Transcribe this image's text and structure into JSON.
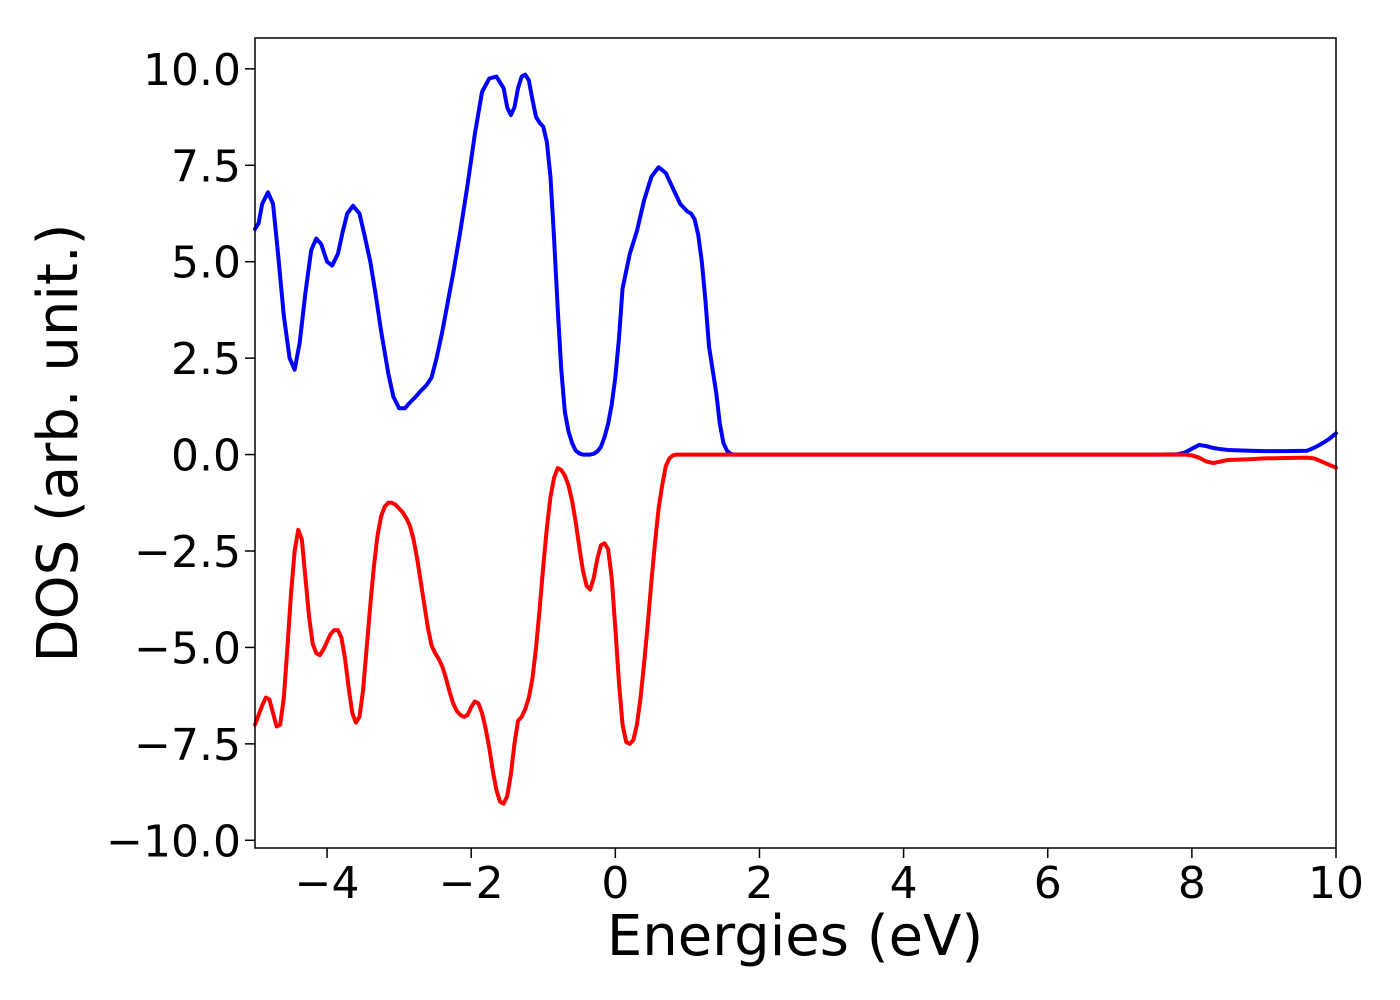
{
  "chart_data": {
    "type": "line",
    "title": "",
    "xlabel": "Energies (eV)",
    "ylabel": "DOS (arb. unit.)",
    "xlim": [
      -5,
      10
    ],
    "ylim": [
      -10.2,
      10.8
    ],
    "xticks": [
      -4,
      -2,
      0,
      2,
      4,
      6,
      8,
      10
    ],
    "xtick_labels": [
      "−4",
      "−2",
      "0",
      "2",
      "4",
      "6",
      "8",
      "10"
    ],
    "yticks": [
      -10,
      -7.5,
      -5,
      -2.5,
      0,
      2.5,
      5,
      7.5,
      10
    ],
    "ytick_labels": [
      "−10.0",
      "−7.5",
      "−5.0",
      "−2.5",
      "0.0",
      "2.5",
      "5.0",
      "7.5",
      "10.0"
    ],
    "grid": false,
    "legend": "none",
    "series": [
      {
        "color": "#0000ff",
        "x": [
          -5.0,
          -4.95,
          -4.9,
          -4.82,
          -4.75,
          -4.68,
          -4.6,
          -4.52,
          -4.45,
          -4.38,
          -4.3,
          -4.22,
          -4.15,
          -4.08,
          -4.0,
          -3.93,
          -3.85,
          -3.78,
          -3.72,
          -3.64,
          -3.55,
          -3.47,
          -3.4,
          -3.33,
          -3.25,
          -3.15,
          -3.08,
          -3.0,
          -2.92,
          -2.85,
          -2.77,
          -2.7,
          -2.62,
          -2.55,
          -2.48,
          -2.4,
          -2.32,
          -2.25,
          -2.15,
          -2.05,
          -1.95,
          -1.85,
          -1.75,
          -1.65,
          -1.55,
          -1.5,
          -1.45,
          -1.4,
          -1.35,
          -1.3,
          -1.25,
          -1.2,
          -1.15,
          -1.1,
          -1.05,
          -1.0,
          -0.95,
          -0.9,
          -0.85,
          -0.8,
          -0.75,
          -0.7,
          -0.65,
          -0.6,
          -0.55,
          -0.5,
          -0.45,
          -0.4,
          -0.35,
          -0.3,
          -0.25,
          -0.2,
          -0.15,
          -0.1,
          -0.05,
          0.0,
          0.05,
          0.1,
          0.2,
          0.3,
          0.4,
          0.5,
          0.6,
          0.7,
          0.8,
          0.9,
          1.0,
          1.05,
          1.1,
          1.15,
          1.2,
          1.25,
          1.3,
          1.4,
          1.45,
          1.5,
          1.55,
          1.6,
          1.65,
          1.7,
          1.75,
          1.8,
          1.85,
          1.9,
          1.95,
          2.0,
          2.05,
          2.1,
          2.15,
          2.2,
          2.25,
          2.3,
          2.35,
          2.4,
          2.45,
          2.5,
          2.55,
          2.6,
          2.7,
          2.8,
          3.0,
          3.5,
          4.0,
          5.0,
          6.0,
          7.0,
          7.5,
          7.8,
          7.9,
          8.0,
          8.1,
          8.2,
          8.3,
          8.4,
          8.5,
          8.8,
          9.0,
          9.3,
          9.6,
          9.7,
          9.8,
          9.9,
          10.0
        ],
        "y": [
          5.85,
          6.0,
          6.5,
          6.8,
          6.5,
          5.2,
          3.6,
          2.5,
          2.2,
          2.9,
          4.2,
          5.3,
          5.6,
          5.45,
          5.0,
          4.9,
          5.2,
          5.8,
          6.25,
          6.45,
          6.25,
          5.6,
          5.0,
          4.2,
          3.2,
          2.1,
          1.5,
          1.2,
          1.2,
          1.35,
          1.5,
          1.65,
          1.8,
          2.0,
          2.5,
          3.2,
          4.0,
          4.7,
          5.8,
          7.0,
          8.3,
          9.4,
          9.75,
          9.8,
          9.5,
          9.0,
          8.8,
          9.0,
          9.5,
          9.8,
          9.85,
          9.7,
          9.2,
          8.75,
          8.6,
          8.5,
          8.1,
          7.2,
          5.6,
          3.8,
          2.2,
          1.1,
          0.6,
          0.3,
          0.1,
          0.03,
          0.0,
          0.0,
          0.0,
          0.02,
          0.08,
          0.2,
          0.45,
          0.8,
          1.3,
          2.0,
          3.0,
          4.3,
          5.2,
          5.8,
          6.6,
          7.2,
          7.45,
          7.3,
          6.9,
          6.5,
          6.3,
          6.25,
          6.1,
          5.7,
          5.0,
          4.0,
          2.8,
          1.6,
          0.8,
          0.3,
          0.1,
          0.02,
          0.0,
          0.0,
          0.0,
          0.0,
          0.0,
          0.0,
          0.0,
          0.0,
          0.0,
          0.0,
          0.0,
          0.0,
          0.0,
          0.0,
          0.0,
          0.0,
          0.0,
          0.0,
          0.0,
          0.0,
          0.0,
          0.0,
          0.0,
          0.0,
          0.0,
          0.0,
          0.0,
          0.0,
          0.0,
          0.01,
          0.05,
          0.15,
          0.25,
          0.22,
          0.17,
          0.14,
          0.12,
          0.1,
          0.09,
          0.09,
          0.1,
          0.18,
          0.28,
          0.4,
          0.55
        ]
      },
      {
        "color": "#ff0000",
        "x": [
          -5.0,
          -4.95,
          -4.9,
          -4.85,
          -4.8,
          -4.75,
          -4.7,
          -4.65,
          -4.6,
          -4.55,
          -4.5,
          -4.45,
          -4.4,
          -4.35,
          -4.3,
          -4.25,
          -4.2,
          -4.15,
          -4.1,
          -4.05,
          -4.0,
          -3.95,
          -3.9,
          -3.85,
          -3.8,
          -3.75,
          -3.7,
          -3.65,
          -3.6,
          -3.55,
          -3.5,
          -3.45,
          -3.4,
          -3.35,
          -3.3,
          -3.25,
          -3.2,
          -3.15,
          -3.1,
          -3.05,
          -3.0,
          -2.95,
          -2.9,
          -2.85,
          -2.8,
          -2.75,
          -2.7,
          -2.65,
          -2.6,
          -2.55,
          -2.5,
          -2.45,
          -2.4,
          -2.35,
          -2.3,
          -2.25,
          -2.2,
          -2.15,
          -2.1,
          -2.05,
          -2.0,
          -1.95,
          -1.9,
          -1.85,
          -1.8,
          -1.75,
          -1.7,
          -1.65,
          -1.6,
          -1.55,
          -1.5,
          -1.45,
          -1.4,
          -1.35,
          -1.3,
          -1.25,
          -1.2,
          -1.15,
          -1.1,
          -1.05,
          -1.0,
          -0.95,
          -0.9,
          -0.85,
          -0.8,
          -0.75,
          -0.7,
          -0.65,
          -0.6,
          -0.55,
          -0.5,
          -0.45,
          -0.4,
          -0.35,
          -0.3,
          -0.25,
          -0.2,
          -0.15,
          -0.1,
          -0.05,
          0.0,
          0.05,
          0.1,
          0.15,
          0.2,
          0.25,
          0.3,
          0.35,
          0.4,
          0.45,
          0.5,
          0.55,
          0.6,
          0.65,
          0.7,
          0.75,
          0.8,
          0.85,
          0.9,
          0.95,
          1.0,
          1.05,
          1.1,
          1.15,
          1.2,
          1.25,
          1.3,
          1.35,
          1.4,
          1.45,
          1.5,
          1.55,
          1.6,
          1.65,
          1.7,
          1.75,
          1.8,
          1.85,
          1.9,
          1.95,
          2.0,
          2.05,
          2.1,
          2.15,
          2.2,
          2.25,
          2.3,
          2.35,
          2.4,
          2.45,
          2.5,
          2.55,
          2.6,
          2.65,
          2.7,
          2.75,
          2.8,
          2.85,
          2.9,
          2.95,
          3.0,
          3.05,
          3.1,
          3.2,
          3.3,
          3.5,
          4.0,
          5.0,
          6.0,
          7.0,
          7.5,
          7.8,
          7.9,
          8.0,
          8.1,
          8.2,
          8.3,
          8.4,
          8.5,
          8.8,
          9.0,
          9.3,
          9.6,
          9.7,
          9.8,
          9.9,
          10.0
        ],
        "y": [
          -7.0,
          -6.75,
          -6.5,
          -6.3,
          -6.35,
          -6.7,
          -7.05,
          -7.0,
          -6.3,
          -5.0,
          -3.6,
          -2.5,
          -1.95,
          -2.2,
          -3.2,
          -4.2,
          -4.9,
          -5.15,
          -5.2,
          -5.05,
          -4.85,
          -4.65,
          -4.55,
          -4.55,
          -4.75,
          -5.3,
          -6.05,
          -6.7,
          -6.95,
          -6.8,
          -6.1,
          -5.0,
          -3.9,
          -2.9,
          -2.1,
          -1.6,
          -1.35,
          -1.25,
          -1.25,
          -1.3,
          -1.4,
          -1.5,
          -1.65,
          -1.85,
          -2.2,
          -2.7,
          -3.3,
          -3.9,
          -4.5,
          -4.95,
          -5.15,
          -5.3,
          -5.5,
          -5.8,
          -6.15,
          -6.45,
          -6.65,
          -6.75,
          -6.8,
          -6.75,
          -6.55,
          -6.4,
          -6.45,
          -6.7,
          -7.1,
          -7.6,
          -8.2,
          -8.7,
          -9.0,
          -9.05,
          -8.85,
          -8.3,
          -7.5,
          -6.9,
          -6.8,
          -6.6,
          -6.3,
          -5.8,
          -5.0,
          -4.0,
          -2.9,
          -1.9,
          -1.1,
          -0.6,
          -0.35,
          -0.4,
          -0.55,
          -0.8,
          -1.2,
          -1.75,
          -2.4,
          -3.0,
          -3.4,
          -3.5,
          -3.2,
          -2.7,
          -2.35,
          -2.3,
          -2.45,
          -3.2,
          -4.5,
          -5.9,
          -7.0,
          -7.45,
          -7.5,
          -7.4,
          -7.0,
          -6.3,
          -5.4,
          -4.4,
          -3.3,
          -2.3,
          -1.4,
          -0.8,
          -0.3,
          -0.1,
          -0.02,
          0.0,
          0.0,
          0.0,
          0.0,
          0.0,
          0.0,
          0.0,
          0.0,
          0.0,
          0.0,
          0.0,
          0.0,
          0.0,
          0.0,
          0.0,
          0.0,
          0.0,
          0.0,
          0.0,
          0.0,
          0.0,
          0.0,
          0.0,
          0.0,
          0.0,
          0.0,
          0.0,
          0.0,
          0.0,
          0.0,
          0.0,
          0.0,
          0.0,
          0.0,
          0.0,
          0.0,
          0.0,
          0.0,
          0.0,
          0.0,
          0.0,
          0.0,
          0.0,
          0.0,
          0.0,
          0.0,
          0.0,
          0.0,
          0.0,
          0.0,
          0.0,
          0.0,
          0.0,
          0.0,
          0.0,
          0.0,
          -0.02,
          -0.08,
          -0.18,
          -0.22,
          -0.18,
          -0.14,
          -0.12,
          -0.1,
          -0.09,
          -0.08,
          -0.1,
          -0.18,
          -0.26,
          -0.34
        ]
      }
    ]
  }
}
